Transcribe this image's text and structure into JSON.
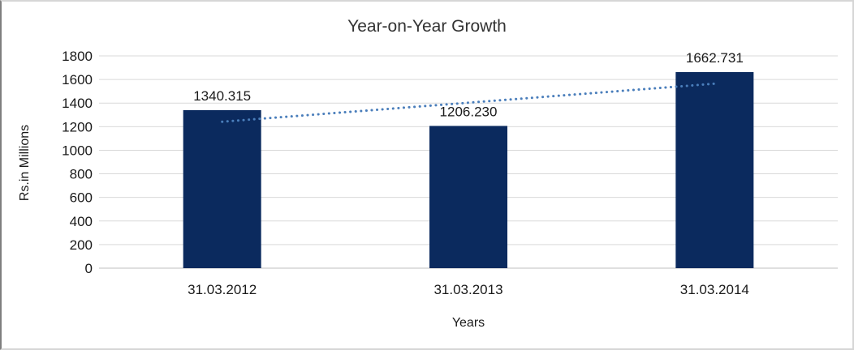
{
  "chart_data": {
    "type": "bar",
    "title": "Year-on-Year Growth",
    "xlabel": "Years",
    "ylabel": "Rs.in Millions",
    "categories": [
      "31.03.2012",
      "31.03.2013",
      "31.03.2014"
    ],
    "values": [
      1340.315,
      1206.23,
      1662.731
    ],
    "data_labels": [
      "1340.315",
      "1206.230",
      "1662.731"
    ],
    "yticks": [
      0,
      200,
      400,
      600,
      800,
      1000,
      1200,
      1400,
      1600,
      1800
    ],
    "ylim": [
      0,
      1800
    ],
    "grid": true,
    "legend_position": "none",
    "bar_color": "#0b2a5e",
    "gridline_color": "#d9d9d9",
    "axis_line_color": "#bfbfbf",
    "trendline": {
      "type": "linear",
      "style": "dotted",
      "color": "#4a7ebb"
    }
  }
}
